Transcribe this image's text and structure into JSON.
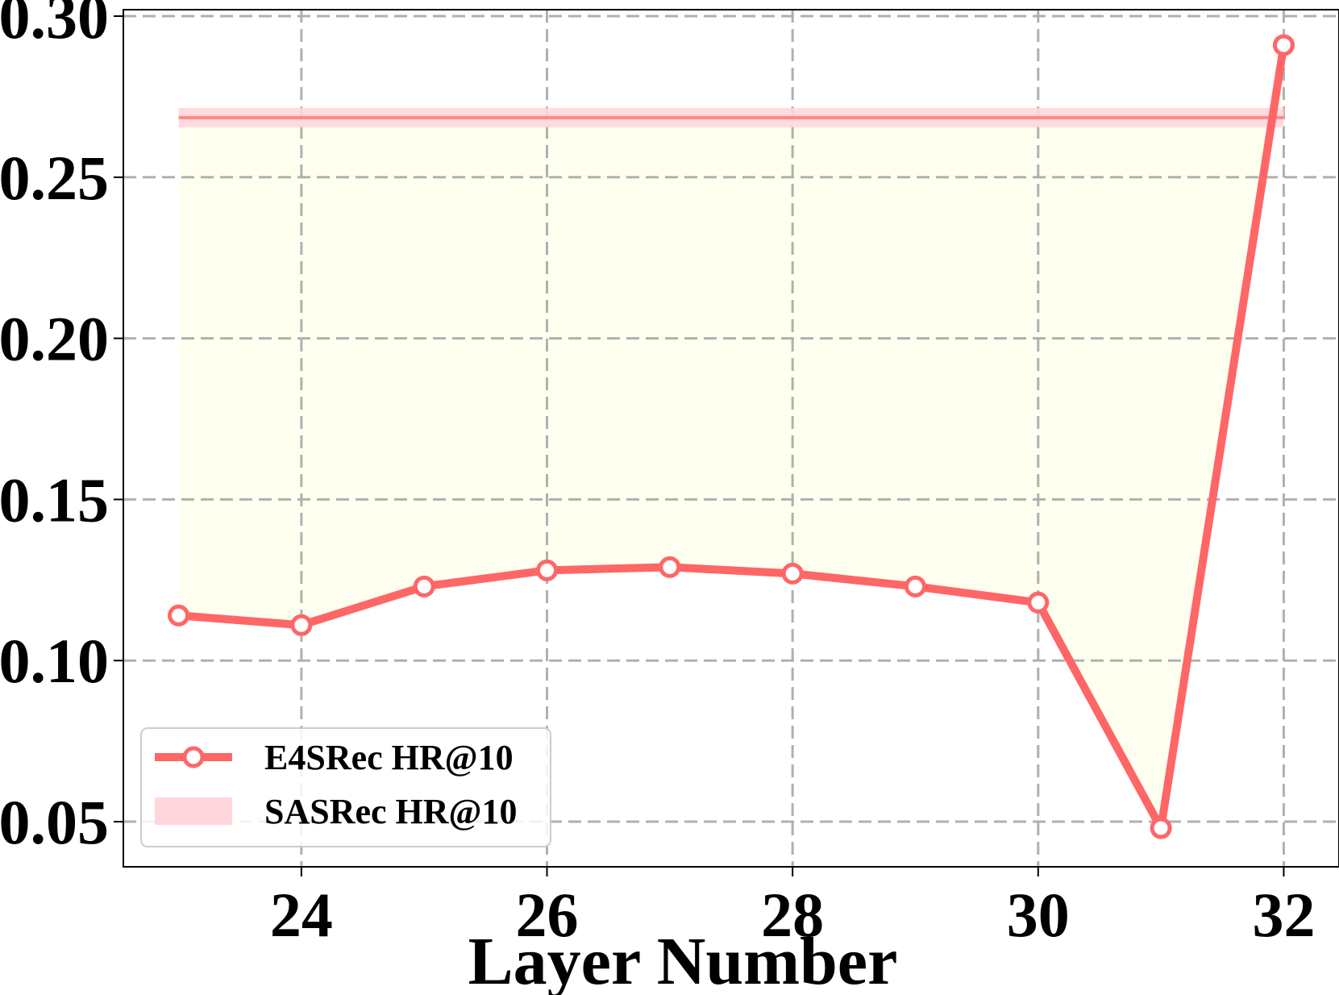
{
  "chart_data": {
    "type": "line",
    "xlabel": "Layer Number",
    "ylabel": "",
    "xlim": [
      22.55,
      32.45
    ],
    "ylim": [
      0.036,
      0.302
    ],
    "xticks": [
      24,
      26,
      28,
      30,
      32
    ],
    "yticks": [
      0.05,
      0.1,
      0.15,
      0.2,
      0.25,
      0.3
    ],
    "ytick_labels": [
      "0.05",
      "0.10",
      "0.15",
      "0.20",
      "0.25",
      "0.30"
    ],
    "grid": true,
    "legend_position": "lower-left",
    "series": [
      {
        "name": "E4SRec HR@10",
        "kind": "line-with-markers",
        "color": "#ff6666",
        "x": [
          23,
          24,
          25,
          26,
          27,
          28,
          29,
          30,
          31,
          32
        ],
        "y": [
          0.114,
          0.111,
          0.123,
          0.128,
          0.129,
          0.127,
          0.123,
          0.118,
          0.048,
          0.291
        ]
      },
      {
        "name": "SASRec HR@10",
        "kind": "band",
        "color": "#ff8888",
        "band_color": "#ffd6dc",
        "x": [
          23,
          32
        ],
        "y": 0.2685,
        "band": [
          0.2655,
          0.2715
        ]
      }
    ],
    "fill_between_color": "#fffff0"
  }
}
